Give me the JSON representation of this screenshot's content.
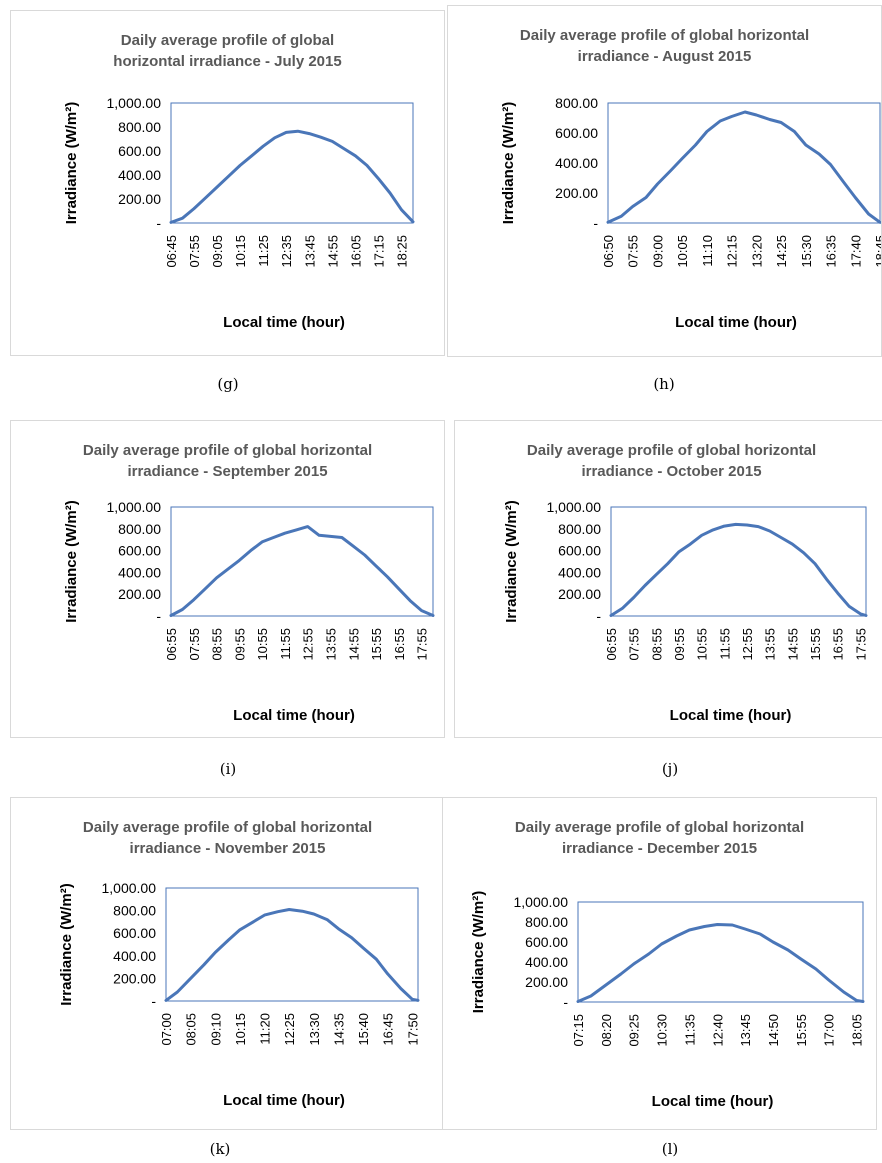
{
  "figure": {
    "captions": [
      "(g)",
      "(h)",
      "(i)",
      "(j)",
      "(k)",
      "(l)"
    ]
  },
  "chart_data": [
    {
      "type": "line",
      "title": "Daily average profile of global horizontal irradiance - July 2015",
      "title_lines": [
        "Daily average profile of global",
        "horizontal irradiance - July 2015"
      ],
      "xlabel": "Local time (hour)",
      "ylabel": "Irradiance (W/m²)",
      "ylim": [
        0,
        1000
      ],
      "yticks": [
        0,
        200,
        400,
        600,
        800,
        1000
      ],
      "ytick_labels": [
        "-",
        "200.00",
        "400.00",
        "600.00",
        "800.00",
        "1,000.00"
      ],
      "xtick_labels": [
        "06:45",
        "07:55",
        "09:05",
        "10:15",
        "11:25",
        "12:35",
        "13:45",
        "14:55",
        "16:05",
        "17:15",
        "18:25"
      ],
      "x": [
        "06:45",
        "07:20",
        "07:55",
        "08:30",
        "09:05",
        "09:40",
        "10:15",
        "10:50",
        "11:25",
        "12:00",
        "12:35",
        "13:10",
        "13:45",
        "14:20",
        "14:55",
        "15:30",
        "16:05",
        "16:40",
        "17:15",
        "17:50",
        "18:25",
        "19:00"
      ],
      "values": [
        5,
        40,
        120,
        210,
        300,
        390,
        480,
        560,
        640,
        710,
        755,
        765,
        745,
        715,
        680,
        620,
        560,
        480,
        370,
        250,
        110,
        10
      ],
      "series": [
        {
          "name": "",
          "color": "#4a76b8"
        }
      ]
    },
    {
      "type": "line",
      "title": "Daily average profile of global horizontal irradiance - August 2015",
      "title_lines": [
        "Daily average profile of global horizontal",
        "irradiance - August 2015"
      ],
      "xlabel": "Local time (hour)",
      "ylabel": "Irradiance (W/m²)",
      "ylim": [
        0,
        800
      ],
      "yticks": [
        0,
        200,
        400,
        600,
        800
      ],
      "ytick_labels": [
        "-",
        "200.00",
        "400.00",
        "600.00",
        "800.00"
      ],
      "xtick_labels": [
        "06:50",
        "07:55",
        "09:00",
        "10:05",
        "11:10",
        "12:15",
        "13:20",
        "14:25",
        "15:30",
        "16:35",
        "17:40",
        "18:45"
      ],
      "x": [
        "06:50",
        "07:25",
        "07:55",
        "08:30",
        "09:00",
        "09:35",
        "10:05",
        "10:40",
        "11:10",
        "11:45",
        "12:15",
        "12:50",
        "13:20",
        "13:55",
        "14:25",
        "15:00",
        "15:30",
        "16:05",
        "16:35",
        "17:10",
        "17:40",
        "18:15",
        "18:45"
      ],
      "values": [
        5,
        45,
        110,
        170,
        260,
        350,
        430,
        520,
        610,
        680,
        710,
        740,
        720,
        690,
        670,
        610,
        520,
        460,
        390,
        270,
        170,
        60,
        5
      ],
      "series": [
        {
          "name": "",
          "color": "#4a76b8"
        }
      ]
    },
    {
      "type": "line",
      "title": "Daily average profile of global horizontal irradiance - September 2015",
      "title_lines": [
        "Daily average profile of global horizontal",
        "irradiance - September 2015"
      ],
      "xlabel": "Local time (hour)",
      "ylabel": "Irradiance (W/m²)",
      "ylim": [
        0,
        1000
      ],
      "yticks": [
        0,
        200,
        400,
        600,
        800,
        1000
      ],
      "ytick_labels": [
        "-",
        "200.00",
        "400.00",
        "600.00",
        "800.00",
        "1,000.00"
      ],
      "xtick_labels": [
        "06:55",
        "07:55",
        "08:55",
        "09:55",
        "10:55",
        "11:55",
        "12:55",
        "13:55",
        "14:55",
        "15:55",
        "16:55",
        "17:55"
      ],
      "x": [
        "06:55",
        "07:25",
        "07:55",
        "08:25",
        "08:55",
        "09:25",
        "09:55",
        "10:25",
        "10:55",
        "11:25",
        "11:55",
        "12:25",
        "12:55",
        "13:25",
        "13:55",
        "14:25",
        "14:55",
        "15:25",
        "15:55",
        "16:25",
        "16:55",
        "17:25",
        "17:55",
        "18:25"
      ],
      "values": [
        5,
        60,
        150,
        250,
        350,
        430,
        510,
        600,
        680,
        720,
        760,
        790,
        820,
        740,
        730,
        720,
        640,
        560,
        460,
        360,
        250,
        140,
        50,
        5
      ],
      "series": [
        {
          "name": "",
          "color": "#4a76b8"
        }
      ]
    },
    {
      "type": "line",
      "title": "Daily average profile of global horizontal irradiance - October 2015",
      "title_lines": [
        "Daily average profile of global horizontal",
        "irradiance - October 2015"
      ],
      "xlabel": "Local time (hour)",
      "ylabel": "Irradiance (W/m²)",
      "ylim": [
        0,
        1000
      ],
      "yticks": [
        0,
        200,
        400,
        600,
        800,
        1000
      ],
      "ytick_labels": [
        "-",
        "200.00",
        "400.00",
        "600.00",
        "800.00",
        "1,000.00"
      ],
      "xtick_labels": [
        "06:55",
        "07:55",
        "08:55",
        "09:55",
        "10:55",
        "11:55",
        "12:55",
        "13:55",
        "14:55",
        "15:55",
        "16:55",
        "17:55"
      ],
      "x": [
        "06:55",
        "07:25",
        "07:55",
        "08:25",
        "08:55",
        "09:25",
        "09:55",
        "10:25",
        "10:55",
        "11:25",
        "11:55",
        "12:25",
        "12:55",
        "13:25",
        "13:55",
        "14:25",
        "14:55",
        "15:25",
        "15:55",
        "16:25",
        "16:55",
        "17:25",
        "17:55",
        "18:10"
      ],
      "values": [
        5,
        70,
        170,
        280,
        380,
        480,
        590,
        660,
        740,
        790,
        825,
        840,
        835,
        820,
        780,
        720,
        660,
        580,
        480,
        340,
        210,
        90,
        20,
        5
      ],
      "series": [
        {
          "name": "",
          "color": "#4a76b8"
        }
      ]
    },
    {
      "type": "line",
      "title": "Daily average profile of global horizontal irradiance - November 2015",
      "title_lines": [
        "Daily average profile of global horizontal",
        "irradiance - November 2015"
      ],
      "xlabel": "Local time (hour)",
      "ylabel": "Irradiance (W/m²)",
      "ylim": [
        0,
        1000
      ],
      "yticks": [
        0,
        200,
        400,
        600,
        800,
        1000
      ],
      "ytick_labels": [
        "-",
        "200.00",
        "400.00",
        "600.00",
        "800.00",
        "1,000.00"
      ],
      "xtick_labels": [
        "07:00",
        "08:05",
        "09:10",
        "10:15",
        "11:20",
        "12:25",
        "13:30",
        "14:35",
        "15:40",
        "16:45",
        "17:50"
      ],
      "x": [
        "07:00",
        "07:30",
        "08:05",
        "08:40",
        "09:10",
        "09:45",
        "10:15",
        "10:50",
        "11:20",
        "11:55",
        "12:25",
        "13:00",
        "13:30",
        "14:05",
        "14:35",
        "15:10",
        "15:40",
        "16:15",
        "16:45",
        "17:20",
        "17:50",
        "18:05"
      ],
      "values": [
        5,
        80,
        200,
        320,
        430,
        540,
        630,
        700,
        760,
        790,
        810,
        795,
        770,
        720,
        640,
        560,
        470,
        370,
        240,
        110,
        15,
        5
      ],
      "series": [
        {
          "name": "",
          "color": "#4a76b8"
        }
      ]
    },
    {
      "type": "line",
      "title": "Daily average profile of global horizontal irradiance - December 2015",
      "title_lines": [
        "Daily average profile of global horizontal",
        "irradiance - December 2015"
      ],
      "xlabel": "Local time (hour)",
      "ylabel": "Irradiance (W/m²)",
      "ylim": [
        0,
        1000
      ],
      "yticks": [
        0,
        200,
        400,
        600,
        800,
        1000
      ],
      "ytick_labels": [
        "-",
        "200.00",
        "400.00",
        "600.00",
        "800.00",
        "1,000.00"
      ],
      "xtick_labels": [
        "07:15",
        "08:20",
        "09:25",
        "10:30",
        "11:35",
        "12:40",
        "13:45",
        "14:50",
        "15:55",
        "17:00",
        "18:05"
      ],
      "x": [
        "07:15",
        "07:45",
        "08:20",
        "08:55",
        "09:25",
        "10:00",
        "10:30",
        "11:05",
        "11:35",
        "12:10",
        "12:40",
        "13:15",
        "13:45",
        "14:20",
        "14:50",
        "15:25",
        "15:55",
        "16:30",
        "17:00",
        "17:35",
        "18:05",
        "18:20"
      ],
      "values": [
        5,
        60,
        170,
        280,
        380,
        480,
        580,
        660,
        720,
        755,
        775,
        770,
        730,
        680,
        600,
        520,
        430,
        330,
        220,
        100,
        15,
        5
      ],
      "series": [
        {
          "name": "",
          "color": "#4a76b8"
        }
      ]
    }
  ]
}
